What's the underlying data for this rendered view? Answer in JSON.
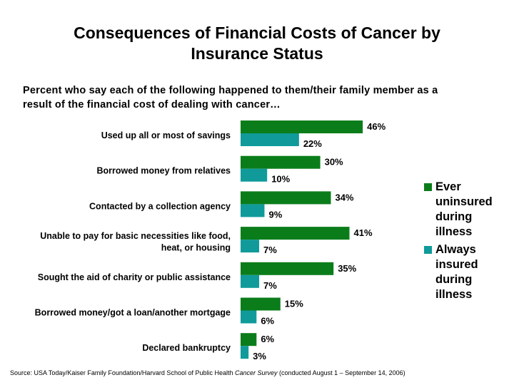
{
  "title": {
    "line1": "Consequences of Financial Costs of Cancer by",
    "line2": "Insurance Status"
  },
  "subtitle": {
    "line1": "Percent who say each of the following happened to them/their family member as a",
    "line2": "result of the financial cost of dealing with cancer…"
  },
  "colors": {
    "uninsured": "#0a7d1a",
    "insured": "#109a9a"
  },
  "chart_data": {
    "type": "bar",
    "orientation": "horizontal",
    "categories": [
      [
        "Used up all or most of savings"
      ],
      [
        "Borrowed money from relatives"
      ],
      [
        "Contacted by a collection agency"
      ],
      [
        "Unable to pay for basic necessities like food,",
        "heat, or housing"
      ],
      [
        "Sought the aid of charity or public assistance"
      ],
      [
        "Borrowed money/got a loan/another mortgage"
      ],
      [
        "Declared bankruptcy"
      ]
    ],
    "series": [
      {
        "name": "Ever uninsured during illness",
        "values": [
          46,
          30,
          34,
          41,
          35,
          15,
          6
        ]
      },
      {
        "name": "Always insured during illness",
        "values": [
          22,
          10,
          9,
          7,
          7,
          6,
          3
        ]
      }
    ],
    "value_suffix": "%",
    "xlim": [
      0,
      50
    ]
  },
  "legend": {
    "uninsured_lines": [
      "Ever",
      "uninsured",
      "during",
      "illness"
    ],
    "insured_lines": [
      "Always",
      "insured",
      "during",
      "illness"
    ]
  },
  "source": {
    "prefix": "Source: USA Today/Kaiser Family Foundation/Harvard School of Public Health ",
    "italic": "Cancer Survey",
    "suffix": " (conducted August 1 – September 14, 2006)"
  }
}
